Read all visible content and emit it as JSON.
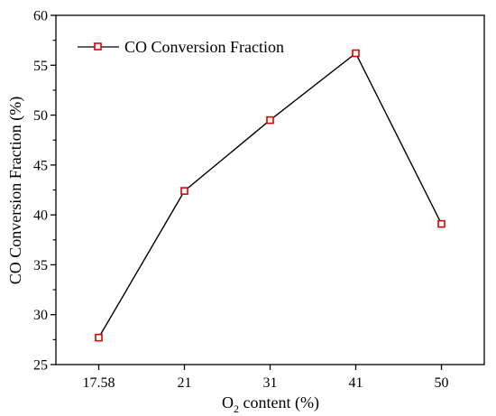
{
  "chart_data": {
    "type": "line",
    "categories": [
      "17.58",
      "21",
      "31",
      "41",
      "50"
    ],
    "series": [
      {
        "name": "CO Conversion Fraction",
        "values": [
          27.7,
          42.4,
          49.5,
          56.2,
          39.1
        ],
        "color": "#e00000",
        "line_color": "#000000",
        "marker": "open-square"
      }
    ],
    "xlabel": {
      "pre": "O",
      "sub": "2",
      "post": " content (%)"
    },
    "ylabel": "CO Conversion Fraction (%)",
    "ylim": [
      25,
      60
    ],
    "yticks": [
      "25",
      "30",
      "35",
      "40",
      "45",
      "50",
      "55",
      "60"
    ],
    "legend_position": "top-left",
    "grid": false
  }
}
